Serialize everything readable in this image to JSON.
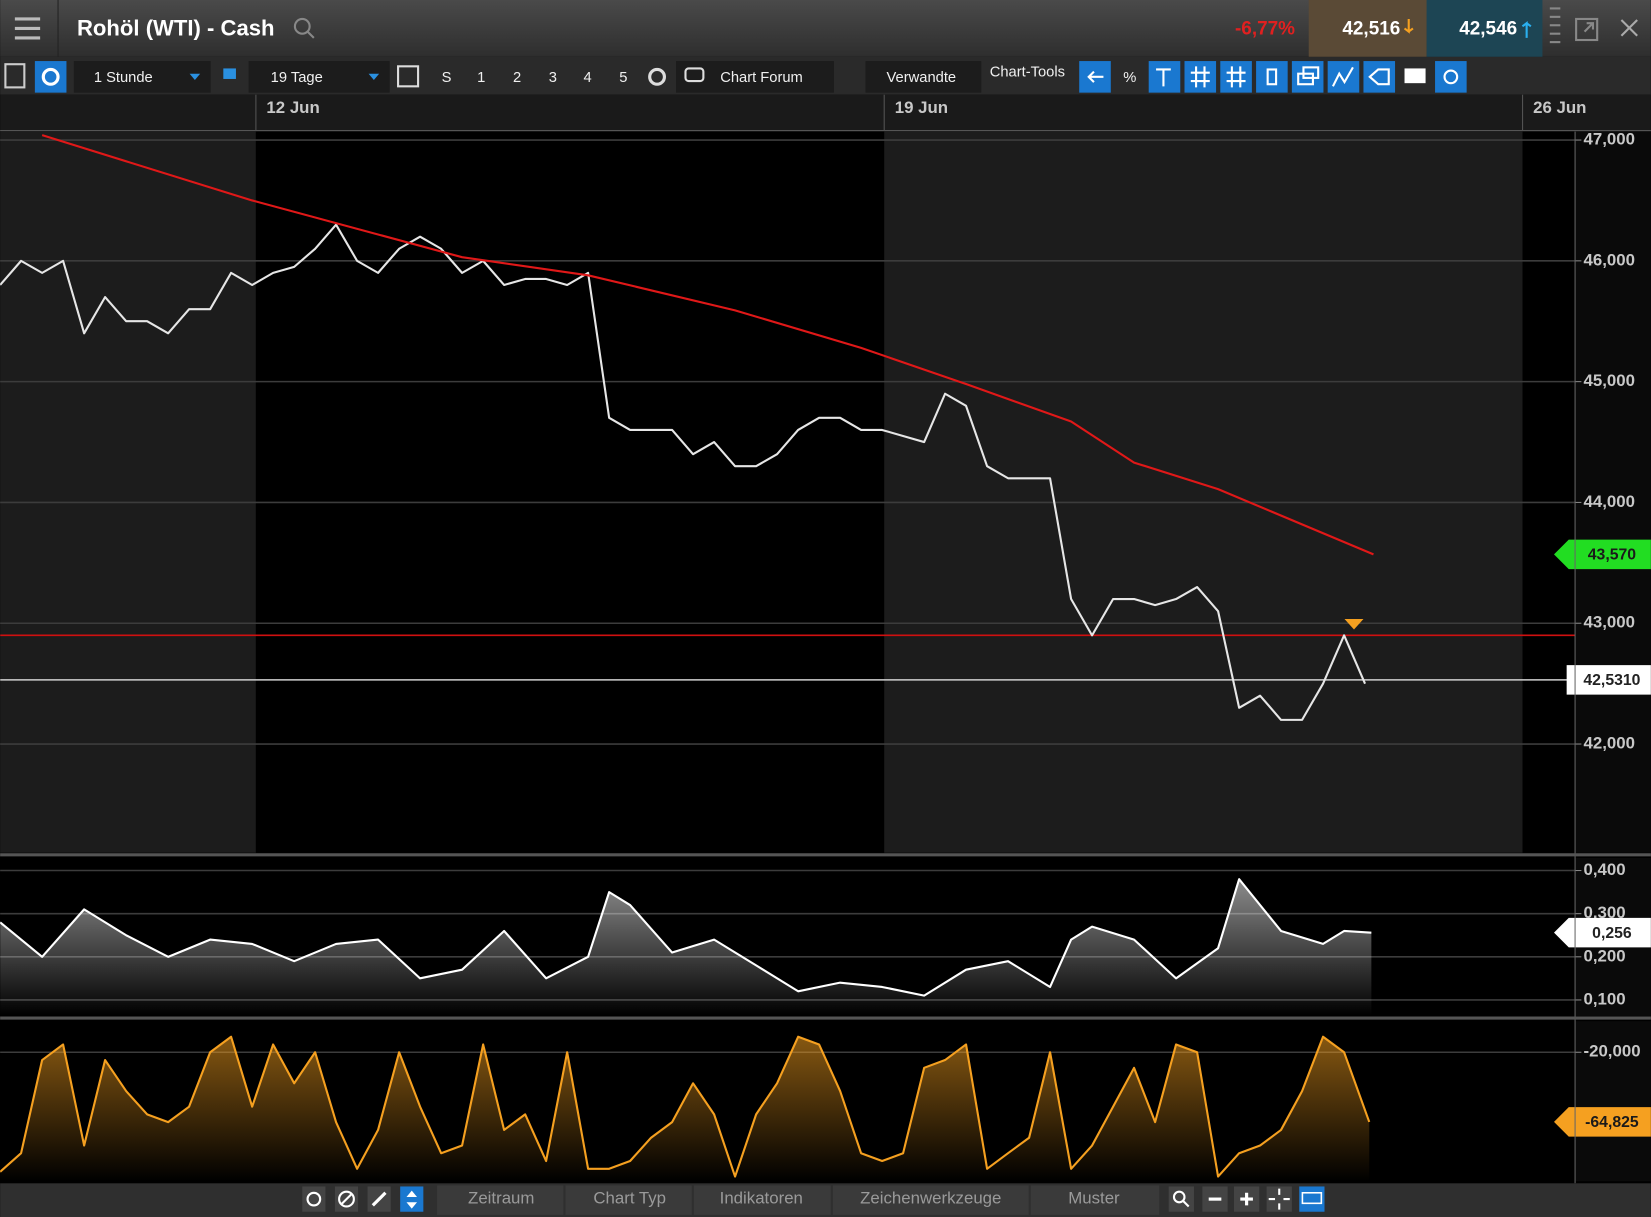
{
  "header": {
    "title": "Rohöl (WTI) - Cash",
    "change": "-6,77%",
    "bid": "42,516",
    "ask": "42,546"
  },
  "toolbar": {
    "interval": "1 Stunde",
    "range": "19 Tage",
    "days": [
      "S",
      "1",
      "2",
      "3",
      "4",
      "5"
    ],
    "forum": "Chart Forum",
    "related": "Verwandte",
    "tools": "Chart-Tools",
    "percent": "%"
  },
  "footer": {
    "buttons": [
      "Zeitraum",
      "Chart Typ",
      "Indikatoren",
      "Zeichenwerkzeuge",
      "Muster"
    ]
  },
  "chart_data": [
    {
      "type": "line",
      "xlim": [
        0,
        75
      ],
      "ylim": [
        41.1,
        47.07
      ],
      "grid": true,
      "xticks": [
        {
          "value": 12.18,
          "label": "12 Jun"
        },
        {
          "value": 42.1,
          "label": "19 Jun"
        },
        {
          "value": 72.5,
          "label": "26 Jun"
        }
      ],
      "yticks": [
        {
          "value": 42,
          "label": "42,000"
        },
        {
          "value": 43,
          "label": "43,000"
        },
        {
          "value": 44,
          "label": "44,000"
        },
        {
          "value": 45,
          "label": "45,000"
        },
        {
          "value": 46,
          "label": "46,000"
        },
        {
          "value": 47,
          "label": "47,000"
        }
      ],
      "series": [
        {
          "color": "#e6e6e6",
          "x": [
            0,
            1,
            2,
            3,
            4,
            5,
            6,
            7,
            8,
            9,
            10,
            11,
            12,
            13,
            14,
            15,
            16,
            17,
            18,
            19,
            20,
            21,
            22,
            23,
            24,
            25,
            26,
            27,
            28,
            29,
            30,
            31,
            32,
            33,
            34,
            35,
            36,
            37,
            38,
            39,
            40,
            41,
            42,
            43,
            44,
            45,
            46,
            47,
            48,
            49,
            50,
            51,
            52,
            53,
            54,
            55,
            56,
            57,
            58,
            59,
            60,
            61,
            62,
            63,
            64,
            65
          ],
          "values": [
            45.8,
            46.0,
            45.9,
            46.0,
            45.4,
            45.7,
            45.5,
            45.5,
            45.4,
            45.6,
            45.6,
            45.9,
            45.8,
            45.9,
            45.95,
            46.1,
            46.3,
            46.0,
            45.9,
            46.1,
            46.2,
            46.1,
            45.9,
            46.0,
            45.8,
            45.85,
            45.85,
            45.8,
            45.9,
            44.7,
            44.6,
            44.6,
            44.6,
            44.4,
            44.5,
            44.3,
            44.3,
            44.4,
            44.6,
            44.7,
            44.7,
            44.6,
            44.6,
            44.55,
            44.5,
            44.9,
            44.8,
            44.3,
            44.2,
            44.2,
            44.2,
            43.2,
            42.9,
            43.2,
            43.2,
            43.15,
            43.2,
            43.3,
            43.1,
            42.3,
            42.4,
            42.2,
            42.2,
            42.5,
            42.9,
            42.5
          ]
        },
        {
          "color": "#e01818",
          "x": [
            2,
            12,
            22,
            28,
            35,
            41,
            46,
            51,
            54,
            58,
            65.4
          ],
          "values": [
            47.04,
            46.5,
            46.03,
            45.88,
            45.59,
            45.28,
            44.98,
            44.67,
            44.33,
            44.11,
            43.57
          ]
        }
      ],
      "hlines": [
        {
          "value": 42.9,
          "color": "#d01010"
        }
      ],
      "markers": [
        {
          "value": 43.57,
          "label": "43,570",
          "color": "#22dd22"
        },
        {
          "value": 42.531,
          "label": "42,5310",
          "color": "#ffffff",
          "line": true
        }
      ]
    },
    {
      "type": "line",
      "ylim": [
        0.063,
        0.429
      ],
      "grid": true,
      "yticks": [
        {
          "value": 0.1,
          "label": "0,100"
        },
        {
          "value": 0.2,
          "label": "0,200"
        },
        {
          "value": 0.3,
          "label": "0,300"
        },
        {
          "value": 0.4,
          "label": "0,400"
        }
      ],
      "series": [
        {
          "color": "#ffffff",
          "fill": true,
          "x": [
            0,
            2,
            4,
            6,
            8,
            10,
            12,
            14,
            16,
            18,
            20,
            22,
            24,
            26,
            28,
            29,
            30,
            32,
            34,
            36,
            38,
            40,
            42,
            44,
            46,
            48,
            50,
            51,
            52,
            54,
            56,
            58,
            59,
            61,
            63,
            64,
            65.3
          ],
          "values": [
            0.28,
            0.2,
            0.31,
            0.25,
            0.2,
            0.24,
            0.23,
            0.19,
            0.23,
            0.24,
            0.15,
            0.17,
            0.26,
            0.15,
            0.2,
            0.35,
            0.32,
            0.21,
            0.24,
            0.18,
            0.12,
            0.14,
            0.13,
            0.11,
            0.17,
            0.19,
            0.13,
            0.24,
            0.27,
            0.24,
            0.15,
            0.22,
            0.38,
            0.26,
            0.23,
            0.26,
            0.256
          ]
        }
      ],
      "markers": [
        {
          "value": 0.256,
          "label": "0,256",
          "color": "#ffffff"
        }
      ]
    },
    {
      "type": "line",
      "ylim": [
        -103,
        0
      ],
      "grid": true,
      "yticks": [
        {
          "value": -20,
          "label": "-20,000"
        }
      ],
      "series": [
        {
          "color": "#f5a020",
          "fill": true,
          "x": [
            0,
            1,
            2,
            3,
            4,
            5,
            6,
            7,
            8,
            9,
            10,
            11,
            12,
            13,
            14,
            15,
            16,
            17,
            18,
            19,
            20,
            21,
            22,
            23,
            24,
            25,
            26,
            27,
            28,
            29,
            30,
            31,
            32,
            33,
            34,
            35,
            36,
            37,
            38,
            39,
            40,
            41,
            42,
            43,
            44,
            45,
            46,
            47,
            48,
            49,
            50,
            51,
            52,
            53,
            54,
            55,
            56,
            57,
            58,
            59,
            60,
            61,
            62,
            63,
            64,
            65.2
          ],
          "values": [
            -97,
            -85,
            -25,
            -15,
            -80,
            -25,
            -45,
            -60,
            -65,
            -55,
            -20,
            -10,
            -55,
            -15,
            -40,
            -20,
            -65,
            -95,
            -70,
            -20,
            -55,
            -85,
            -80,
            -15,
            -70,
            -60,
            -90,
            -20,
            -95,
            -95,
            -90,
            -75,
            -65,
            -40,
            -60,
            -100,
            -60,
            -40,
            -10,
            -15,
            -45,
            -85,
            -90,
            -85,
            -30,
            -25,
            -15,
            -95,
            -85,
            -75,
            -20,
            -95,
            -80,
            -55,
            -30,
            -65,
            -15,
            -20,
            -100,
            -85,
            -80,
            -70,
            -45,
            -10,
            -20,
            -64.825
          ]
        }
      ],
      "markers": [
        {
          "value": -64.825,
          "label": "-64,825",
          "color": "#f5a020"
        }
      ]
    }
  ]
}
